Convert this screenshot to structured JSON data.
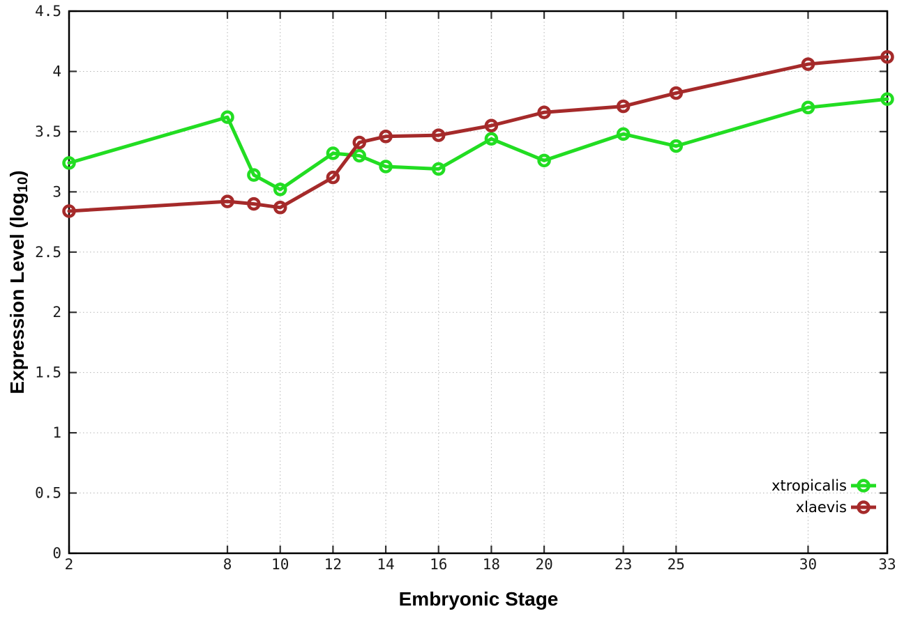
{
  "page": {
    "background": "#ffffff"
  },
  "chart_data": {
    "type": "line",
    "title": "",
    "xlabel": "Embryonic Stage",
    "ylabel": "Expression Level (log10)",
    "ylabel_parts": {
      "pre": "Expression Level (log",
      "sub": "10",
      "post": ")"
    },
    "x": [
      2,
      8,
      9,
      10,
      12,
      13,
      14,
      16,
      18,
      20,
      23,
      25,
      30,
      33
    ],
    "x_tick_labels": [
      2,
      8,
      10,
      12,
      14,
      16,
      18,
      20,
      23,
      25,
      30,
      33
    ],
    "y_tick_labels": [
      0,
      0.5,
      1,
      1.5,
      2,
      2.5,
      3,
      3.5,
      4,
      4.5
    ],
    "xlim": [
      2,
      33
    ],
    "ylim": [
      0,
      4.5
    ],
    "grid": true,
    "legend_position": "bottom-right-inside",
    "series": [
      {
        "name": "xtropicalis",
        "color": "#22dd22",
        "marker": "open-circle",
        "values": [
          3.24,
          3.62,
          3.14,
          3.02,
          3.32,
          3.3,
          3.21,
          3.19,
          3.44,
          3.26,
          3.48,
          3.38,
          3.7,
          3.77
        ]
      },
      {
        "name": "xlaevis",
        "color": "#a52a2a",
        "marker": "open-circle",
        "values": [
          2.84,
          2.92,
          2.9,
          2.87,
          3.12,
          3.41,
          3.46,
          3.47,
          3.55,
          3.66,
          3.71,
          3.82,
          4.06,
          4.12
        ]
      }
    ],
    "style": {
      "axis_color": "#000000",
      "tick_color": "#333333",
      "grid_color": "#b4b4b4",
      "tick_label_color": "#1a1a1a",
      "line_width": 5,
      "marker_radius": 7.5,
      "marker_stroke": 4.5
    }
  }
}
